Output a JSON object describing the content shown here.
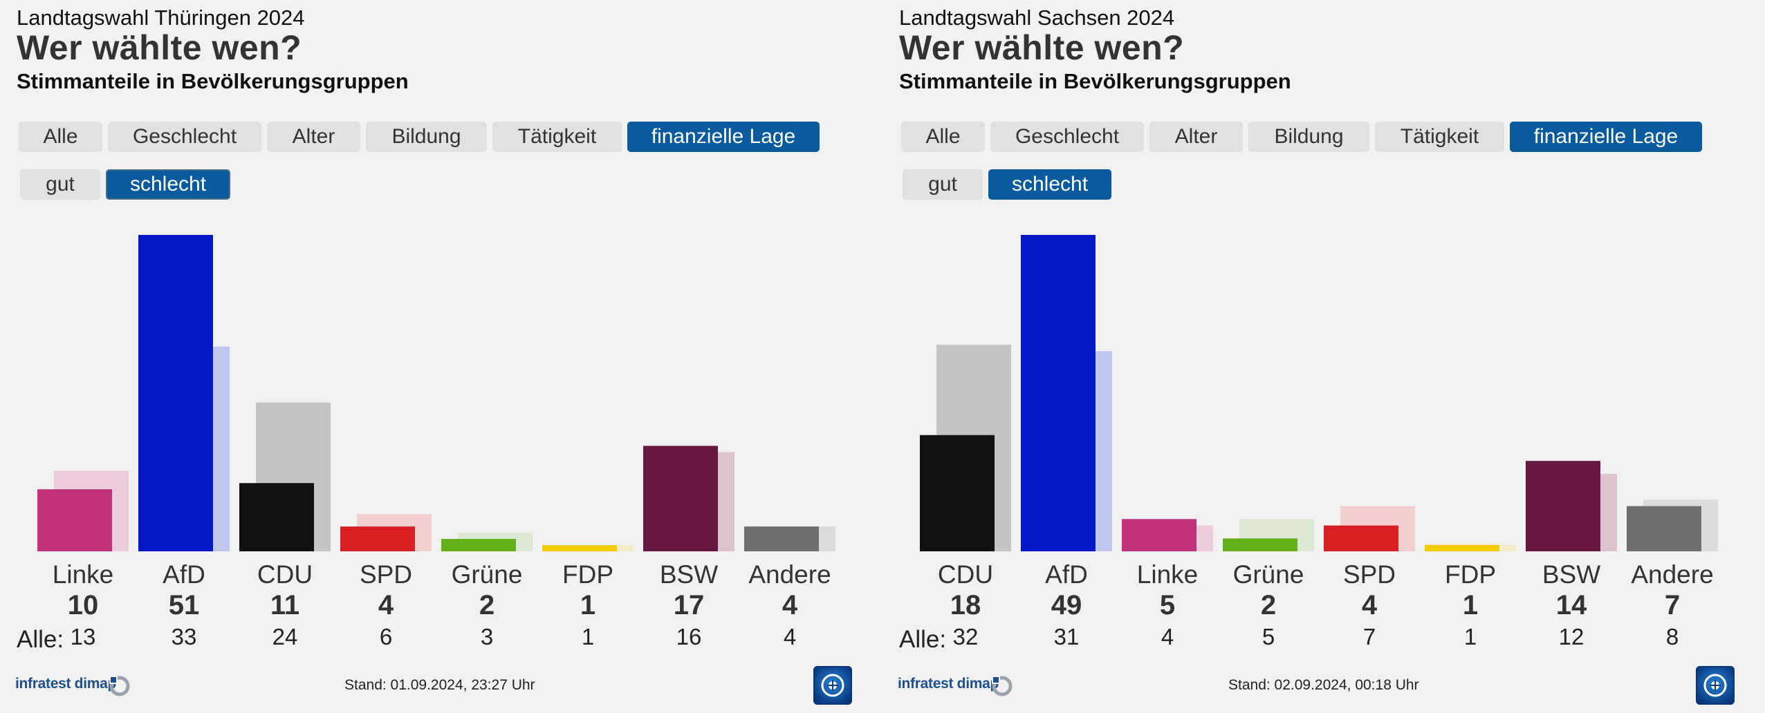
{
  "colors": {
    "accent_active_tab": "#0a5b9d",
    "tab_background": "#e1e1e1",
    "page_background": "#f1f1f1"
  },
  "panels": [
    {
      "supertitle": "Landtagswahl Thüringen 2024",
      "headline": "Wer wählte wen?",
      "subheadline": "Stimmanteile in Bevölkerungsgruppen",
      "tabs": [
        {
          "label": "Alle",
          "active": false
        },
        {
          "label": "Geschlecht",
          "active": false
        },
        {
          "label": "Alter",
          "active": false
        },
        {
          "label": "Bildung",
          "active": false
        },
        {
          "label": "Tätigkeit",
          "active": false
        },
        {
          "label": "finanzielle Lage",
          "active": true
        }
      ],
      "subtabs": [
        {
          "label": "gut",
          "active": false
        },
        {
          "label": "schlecht",
          "active": true
        }
      ],
      "alle_label": "Alle:",
      "source": "infratest dimap",
      "stand": "Stand: 01.09.2024, 23:27 Uhr",
      "logo_icon": "ard-tagesschau-logo-icon"
    },
    {
      "supertitle": "Landtagswahl Sachsen 2024",
      "headline": "Wer wählte wen?",
      "subheadline": "Stimmanteile in Bevölkerungsgruppen",
      "tabs": [
        {
          "label": "Alle",
          "active": false
        },
        {
          "label": "Geschlecht",
          "active": false
        },
        {
          "label": "Alter",
          "active": false
        },
        {
          "label": "Bildung",
          "active": false
        },
        {
          "label": "Tätigkeit",
          "active": false
        },
        {
          "label": "finanzielle Lage",
          "active": true
        }
      ],
      "subtabs": [
        {
          "label": "gut",
          "active": false
        },
        {
          "label": "schlecht",
          "active": true
        }
      ],
      "alle_label": "Alle:",
      "source": "infratest dimap",
      "stand": "Stand: 02.09.2024, 00:18 Uhr",
      "logo_icon": "ard-tagesschau-logo-icon"
    }
  ],
  "chart_data": [
    {
      "type": "bar",
      "title": "Landtagswahl Thüringen 2024",
      "categories": [
        "Linke",
        "AfD",
        "CDU",
        "SPD",
        "Grüne",
        "FDP",
        "BSW",
        "Andere"
      ],
      "colors": [
        "#c0317a",
        "#0418c8",
        "#111111",
        "#d91e24",
        "#64b01b",
        "#f2cc00",
        "#671840",
        "#6e6e6e"
      ],
      "light_colors": [
        "#ecccda",
        "#c0c6ee",
        "#c4c4c4",
        "#f2cfcf",
        "#dde8d4",
        "#f4edcc",
        "#dcc4cd",
        "#dcdcdc"
      ],
      "series": [
        {
          "name": "schlecht",
          "values": [
            10,
            51,
            11,
            4,
            2,
            1,
            17,
            4
          ]
        },
        {
          "name": "Alle",
          "values": [
            13,
            33,
            24,
            6,
            3,
            1,
            16,
            4
          ]
        }
      ],
      "ylim": [
        0,
        51
      ]
    },
    {
      "type": "bar",
      "title": "Landtagswahl Sachsen 2024",
      "categories": [
        "CDU",
        "AfD",
        "Linke",
        "Grüne",
        "SPD",
        "FDP",
        "BSW",
        "Andere"
      ],
      "colors": [
        "#111111",
        "#0418c8",
        "#c0317a",
        "#64b01b",
        "#d91e24",
        "#f2cc00",
        "#671840",
        "#6e6e6e"
      ],
      "light_colors": [
        "#c4c4c4",
        "#c0c6ee",
        "#ecccda",
        "#dde8d4",
        "#f2cfcf",
        "#f4edcc",
        "#dcc4cd",
        "#dcdcdc"
      ],
      "series": [
        {
          "name": "schlecht",
          "values": [
            18,
            49,
            5,
            2,
            4,
            1,
            14,
            7
          ]
        },
        {
          "name": "Alle",
          "values": [
            32,
            31,
            4,
            5,
            7,
            1,
            12,
            8
          ]
        }
      ],
      "ylim": [
        0,
        49
      ]
    }
  ]
}
